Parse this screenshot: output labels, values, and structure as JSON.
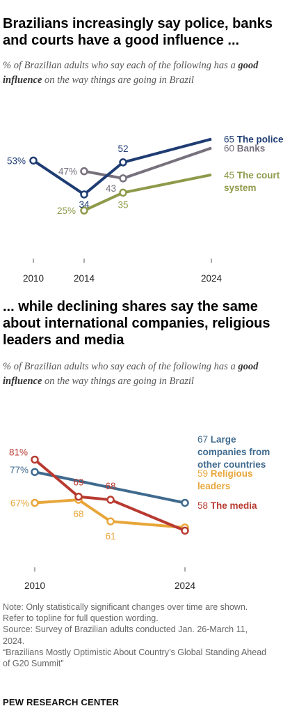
{
  "chart1": {
    "title": "Brazilians increasingly say police, banks and courts have a good influence ...",
    "subtitle_pre": "% of Brazilian adults who say each of the following has a ",
    "subtitle_bold": "good influence",
    "subtitle_post": " on the way things are going in Brazil"
  },
  "chart2": {
    "title": "... while declining shares say the same about international companies, religious leaders and media",
    "subtitle_pre": "% of Brazilian adults who say each of the following has a ",
    "subtitle_bold": "good influence",
    "subtitle_post": " on the way things are going in Brazil"
  },
  "chart_data": [
    {
      "type": "line",
      "x_ticks": [
        "2010",
        "2014",
        "2024"
      ],
      "series": [
        {
          "name": "The police",
          "color": "#1f3d73",
          "points": [
            {
              "x": 2010,
              "y": 53,
              "label": "53%"
            },
            {
              "x": 2014,
              "y": 34,
              "label": "34"
            },
            {
              "x": 2017,
              "y": 52,
              "label": "52"
            },
            {
              "x": 2024,
              "y": 65,
              "label": "65"
            }
          ]
        },
        {
          "name": "Banks",
          "color": "#77707d",
          "points": [
            {
              "x": 2014,
              "y": 47,
              "label": "47%"
            },
            {
              "x": 2017,
              "y": 43,
              "label": "43"
            },
            {
              "x": 2024,
              "y": 60,
              "label": "60"
            }
          ]
        },
        {
          "name": "The court system",
          "color": "#8f9a4a",
          "points": [
            {
              "x": 2014,
              "y": 25,
              "label": "25%"
            },
            {
              "x": 2017,
              "y": 35,
              "label": "35"
            },
            {
              "x": 2024,
              "y": 45,
              "label": "45"
            }
          ]
        }
      ]
    },
    {
      "type": "line",
      "x_ticks": [
        "2010",
        "2024"
      ],
      "series": [
        {
          "name": "Large companies from other countries",
          "color": "#3f6a8e",
          "points": [
            {
              "x": 2010,
              "y": 77,
              "label": "77%"
            },
            {
              "x": 2024,
              "y": 67,
              "label": "67"
            }
          ]
        },
        {
          "name": "Religious leaders",
          "color": "#e8a63a",
          "points": [
            {
              "x": 2010,
              "y": 67,
              "label": "67%"
            },
            {
              "x": 2014,
              "y": 68,
              "label": "68"
            },
            {
              "x": 2017,
              "y": 61,
              "label": "61"
            },
            {
              "x": 2024,
              "y": 59,
              "label": "59"
            }
          ]
        },
        {
          "name": "The media",
          "color": "#b83a30",
          "points": [
            {
              "x": 2010,
              "y": 81,
              "label": "81%"
            },
            {
              "x": 2014,
              "y": 69,
              "label": "69"
            },
            {
              "x": 2017,
              "y": 68,
              "label": "68"
            },
            {
              "x": 2024,
              "y": 58,
              "label": "58"
            }
          ]
        }
      ]
    }
  ],
  "footer": {
    "note1": "Note: Only statistically significant changes over time are shown.",
    "note2": "Refer to topline for full question wording.",
    "source1": "Source: Survey of Brazilian adults conducted Jan. 26-March 11,",
    "source2": "2024.",
    "report1": "“Brazilians Mostly Optimistic About Country’s Global Standing Ahead",
    "report2": "of G20 Summit”",
    "brand": "PEW RESEARCH CENTER"
  }
}
